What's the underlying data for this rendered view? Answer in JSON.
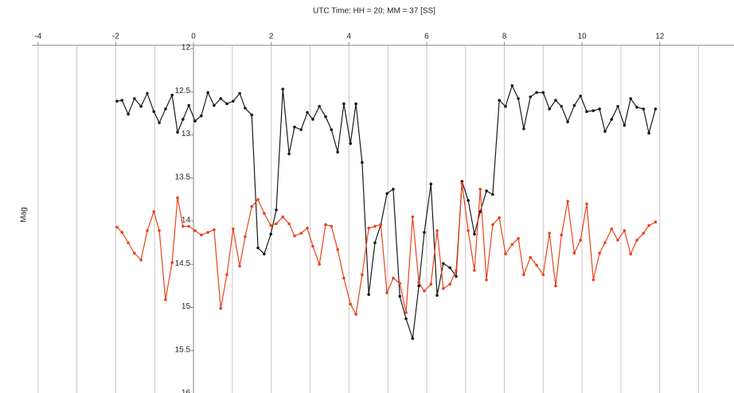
{
  "chart_data": {
    "type": "line",
    "title": "UTC Time: HH = 20; MM = 37 [SS]",
    "y_label": "Mag",
    "xlim": [
      -4.16,
      13.91
    ],
    "ylim": [
      12,
      16
    ],
    "invert_y": true,
    "xticks": [
      -4,
      -2,
      0,
      2,
      4,
      6,
      8,
      10,
      12
    ],
    "x_minor_ticks": [
      -3,
      -1,
      1,
      3,
      5,
      7,
      9,
      11,
      13
    ],
    "yticks": [
      12,
      12.5,
      13,
      13.5,
      14,
      14.5,
      15,
      15.5,
      16
    ],
    "grid": true,
    "x": [
      -1.97,
      -1.84,
      -1.68,
      -1.52,
      -1.35,
      -1.19,
      -1.02,
      -0.88,
      -0.72,
      -0.55,
      -0.41,
      -0.27,
      -0.12,
      0.04,
      0.2,
      0.37,
      0.53,
      0.7,
      0.86,
      1.02,
      1.19,
      1.33,
      1.5,
      1.66,
      1.82,
      1.99,
      2.13,
      2.3,
      2.46,
      2.6,
      2.77,
      2.93,
      3.07,
      3.24,
      3.4,
      3.55,
      3.71,
      3.87,
      4.04,
      4.18,
      4.34,
      4.51,
      4.67,
      4.82,
      4.98,
      5.14,
      5.31,
      5.47,
      5.64,
      5.8,
      5.94,
      6.11,
      6.27,
      6.43,
      6.6,
      6.76,
      6.91,
      7.07,
      7.23,
      7.38,
      7.54,
      7.7,
      7.87,
      8.03,
      8.2,
      8.36,
      8.5,
      8.67,
      8.83,
      9.0,
      9.16,
      9.32,
      9.47,
      9.63,
      9.8,
      9.96,
      10.12,
      10.29,
      10.45,
      10.59,
      10.76,
      10.92,
      11.09,
      11.25,
      11.41,
      11.58,
      11.72,
      11.89
    ],
    "series": [
      {
        "color": "#1a1a1a",
        "values": [
          12.61,
          12.6,
          12.76,
          12.58,
          12.67,
          12.52,
          12.73,
          12.86,
          12.7,
          12.54,
          12.97,
          12.82,
          12.66,
          12.84,
          12.78,
          12.51,
          12.66,
          12.58,
          12.64,
          12.61,
          12.52,
          12.69,
          12.77,
          14.31,
          14.38,
          14.15,
          13.87,
          12.47,
          13.22,
          12.91,
          12.94,
          12.74,
          12.82,
          12.67,
          12.79,
          12.94,
          13.2,
          12.64,
          13.1,
          12.64,
          13.32,
          14.85,
          14.25,
          14.04,
          13.68,
          13.63,
          14.87,
          15.13,
          15.36,
          14.75,
          14.13,
          13.57,
          14.86,
          14.49,
          14.54,
          14.64,
          13.54,
          13.76,
          14.15,
          13.89,
          13.65,
          13.69,
          12.6,
          12.67,
          12.43,
          12.58,
          12.93,
          12.56,
          12.51,
          12.51,
          12.7,
          12.6,
          12.67,
          12.85,
          12.66,
          12.55,
          12.73,
          12.72,
          12.7,
          12.96,
          12.82,
          12.67,
          12.89,
          12.58,
          12.68,
          12.7,
          12.98,
          12.7
        ]
      },
      {
        "color": "#e8431a",
        "values": [
          14.07,
          14.13,
          14.25,
          14.37,
          14.45,
          14.11,
          13.89,
          14.11,
          14.91,
          14.48,
          13.73,
          14.06,
          14.06,
          14.11,
          14.16,
          14.13,
          14.1,
          15.01,
          14.62,
          14.09,
          14.52,
          14.18,
          13.83,
          13.75,
          13.91,
          14.05,
          14.03,
          13.95,
          14.03,
          14.17,
          14.14,
          14.08,
          14.29,
          14.5,
          14.04,
          14.06,
          14.33,
          14.66,
          14.96,
          15.08,
          14.62,
          14.08,
          14.06,
          14.04,
          14.83,
          14.66,
          14.72,
          15.06,
          13.95,
          14.71,
          14.81,
          14.73,
          14.11,
          14.78,
          14.73,
          14.57,
          13.56,
          14.11,
          14.57,
          13.63,
          14.68,
          14.04,
          13.96,
          14.38,
          14.27,
          14.2,
          14.62,
          14.42,
          14.51,
          14.62,
          14.14,
          14.75,
          14.16,
          13.77,
          14.37,
          14.22,
          13.8,
          14.68,
          14.37,
          14.25,
          14.09,
          14.22,
          14.11,
          14.38,
          14.22,
          14.14,
          14.05,
          14.01
        ]
      }
    ]
  }
}
